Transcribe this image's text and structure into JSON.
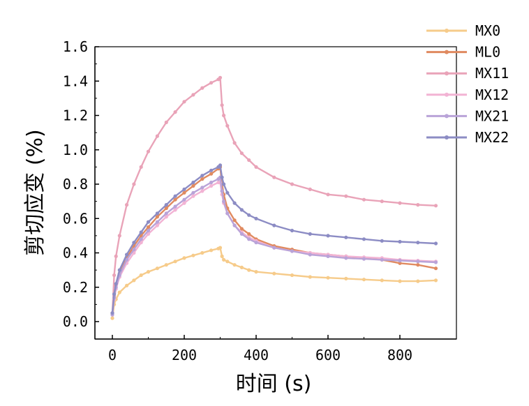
{
  "chart_data": {
    "type": "line",
    "xlabel": "时间 (s)",
    "ylabel": "剪切应变 (%)",
    "xlim": [
      -55,
      900
    ],
    "ylim": [
      -0.1,
      1.6
    ],
    "xticks": [
      0,
      200,
      400,
      600,
      800
    ],
    "xtick_labels": [
      "0",
      "200",
      "400",
      "600",
      "800"
    ],
    "yticks": [
      0.0,
      0.2,
      0.4,
      0.6,
      0.8,
      1.0,
      1.2,
      1.4,
      1.6
    ],
    "ytick_labels": [
      "0.0",
      "0.2",
      "0.4",
      "0.6",
      "0.8",
      "1.0",
      "1.2",
      "1.4",
      "1.6"
    ],
    "grid": false,
    "legend_position": "top-right",
    "x": [
      0,
      5,
      10,
      20,
      40,
      60,
      80,
      100,
      125,
      150,
      175,
      200,
      225,
      250,
      275,
      295,
      300,
      305,
      310,
      320,
      340,
      360,
      380,
      400,
      450,
      500,
      550,
      600,
      650,
      700,
      750,
      800,
      850,
      900
    ],
    "series": [
      {
        "name": "MX0",
        "color": "#F6CB8A",
        "values": [
          0.02,
          0.1,
          0.13,
          0.17,
          0.21,
          0.24,
          0.27,
          0.29,
          0.31,
          0.33,
          0.35,
          0.37,
          0.385,
          0.4,
          0.415,
          0.425,
          0.43,
          0.38,
          0.36,
          0.35,
          0.33,
          0.315,
          0.3,
          0.29,
          0.28,
          0.27,
          0.26,
          0.255,
          0.25,
          0.245,
          0.24,
          0.235,
          0.235,
          0.24
        ]
      },
      {
        "name": "ML0",
        "color": "#E08A60",
        "values": [
          0.05,
          0.15,
          0.21,
          0.28,
          0.37,
          0.44,
          0.5,
          0.55,
          0.61,
          0.66,
          0.71,
          0.75,
          0.79,
          0.83,
          0.86,
          0.89,
          0.9,
          0.8,
          0.74,
          0.66,
          0.59,
          0.54,
          0.51,
          0.48,
          0.44,
          0.42,
          0.4,
          0.39,
          0.38,
          0.37,
          0.36,
          0.34,
          0.33,
          0.31
        ]
      },
      {
        "name": "MX11",
        "color": "#E9A3B8",
        "values": [
          0.05,
          0.27,
          0.38,
          0.5,
          0.68,
          0.8,
          0.9,
          0.99,
          1.08,
          1.16,
          1.22,
          1.28,
          1.32,
          1.36,
          1.39,
          1.41,
          1.42,
          1.26,
          1.2,
          1.14,
          1.04,
          0.98,
          0.94,
          0.9,
          0.84,
          0.8,
          0.77,
          0.74,
          0.73,
          0.71,
          0.7,
          0.69,
          0.68,
          0.675
        ]
      },
      {
        "name": "MX12",
        "color": "#F2B3D4",
        "values": [
          0.04,
          0.13,
          0.19,
          0.26,
          0.34,
          0.4,
          0.46,
          0.51,
          0.56,
          0.61,
          0.65,
          0.69,
          0.73,
          0.76,
          0.79,
          0.81,
          0.81,
          0.74,
          0.69,
          0.63,
          0.56,
          0.52,
          0.49,
          0.47,
          0.43,
          0.41,
          0.4,
          0.39,
          0.38,
          0.375,
          0.37,
          0.36,
          0.355,
          0.35
        ]
      },
      {
        "name": "MX21",
        "color": "#B9A3D8",
        "values": [
          0.04,
          0.14,
          0.2,
          0.27,
          0.36,
          0.42,
          0.48,
          0.53,
          0.58,
          0.63,
          0.67,
          0.71,
          0.75,
          0.78,
          0.81,
          0.83,
          0.84,
          0.76,
          0.7,
          0.63,
          0.56,
          0.51,
          0.48,
          0.46,
          0.43,
          0.41,
          0.39,
          0.38,
          0.37,
          0.365,
          0.36,
          0.355,
          0.35,
          0.345
        ]
      },
      {
        "name": "MX22",
        "color": "#8C8CC4",
        "values": [
          0.05,
          0.16,
          0.22,
          0.3,
          0.39,
          0.46,
          0.52,
          0.58,
          0.63,
          0.68,
          0.73,
          0.77,
          0.81,
          0.85,
          0.88,
          0.9,
          0.91,
          0.84,
          0.8,
          0.75,
          0.69,
          0.65,
          0.62,
          0.6,
          0.56,
          0.53,
          0.51,
          0.5,
          0.49,
          0.48,
          0.47,
          0.465,
          0.46,
          0.455
        ]
      }
    ]
  }
}
